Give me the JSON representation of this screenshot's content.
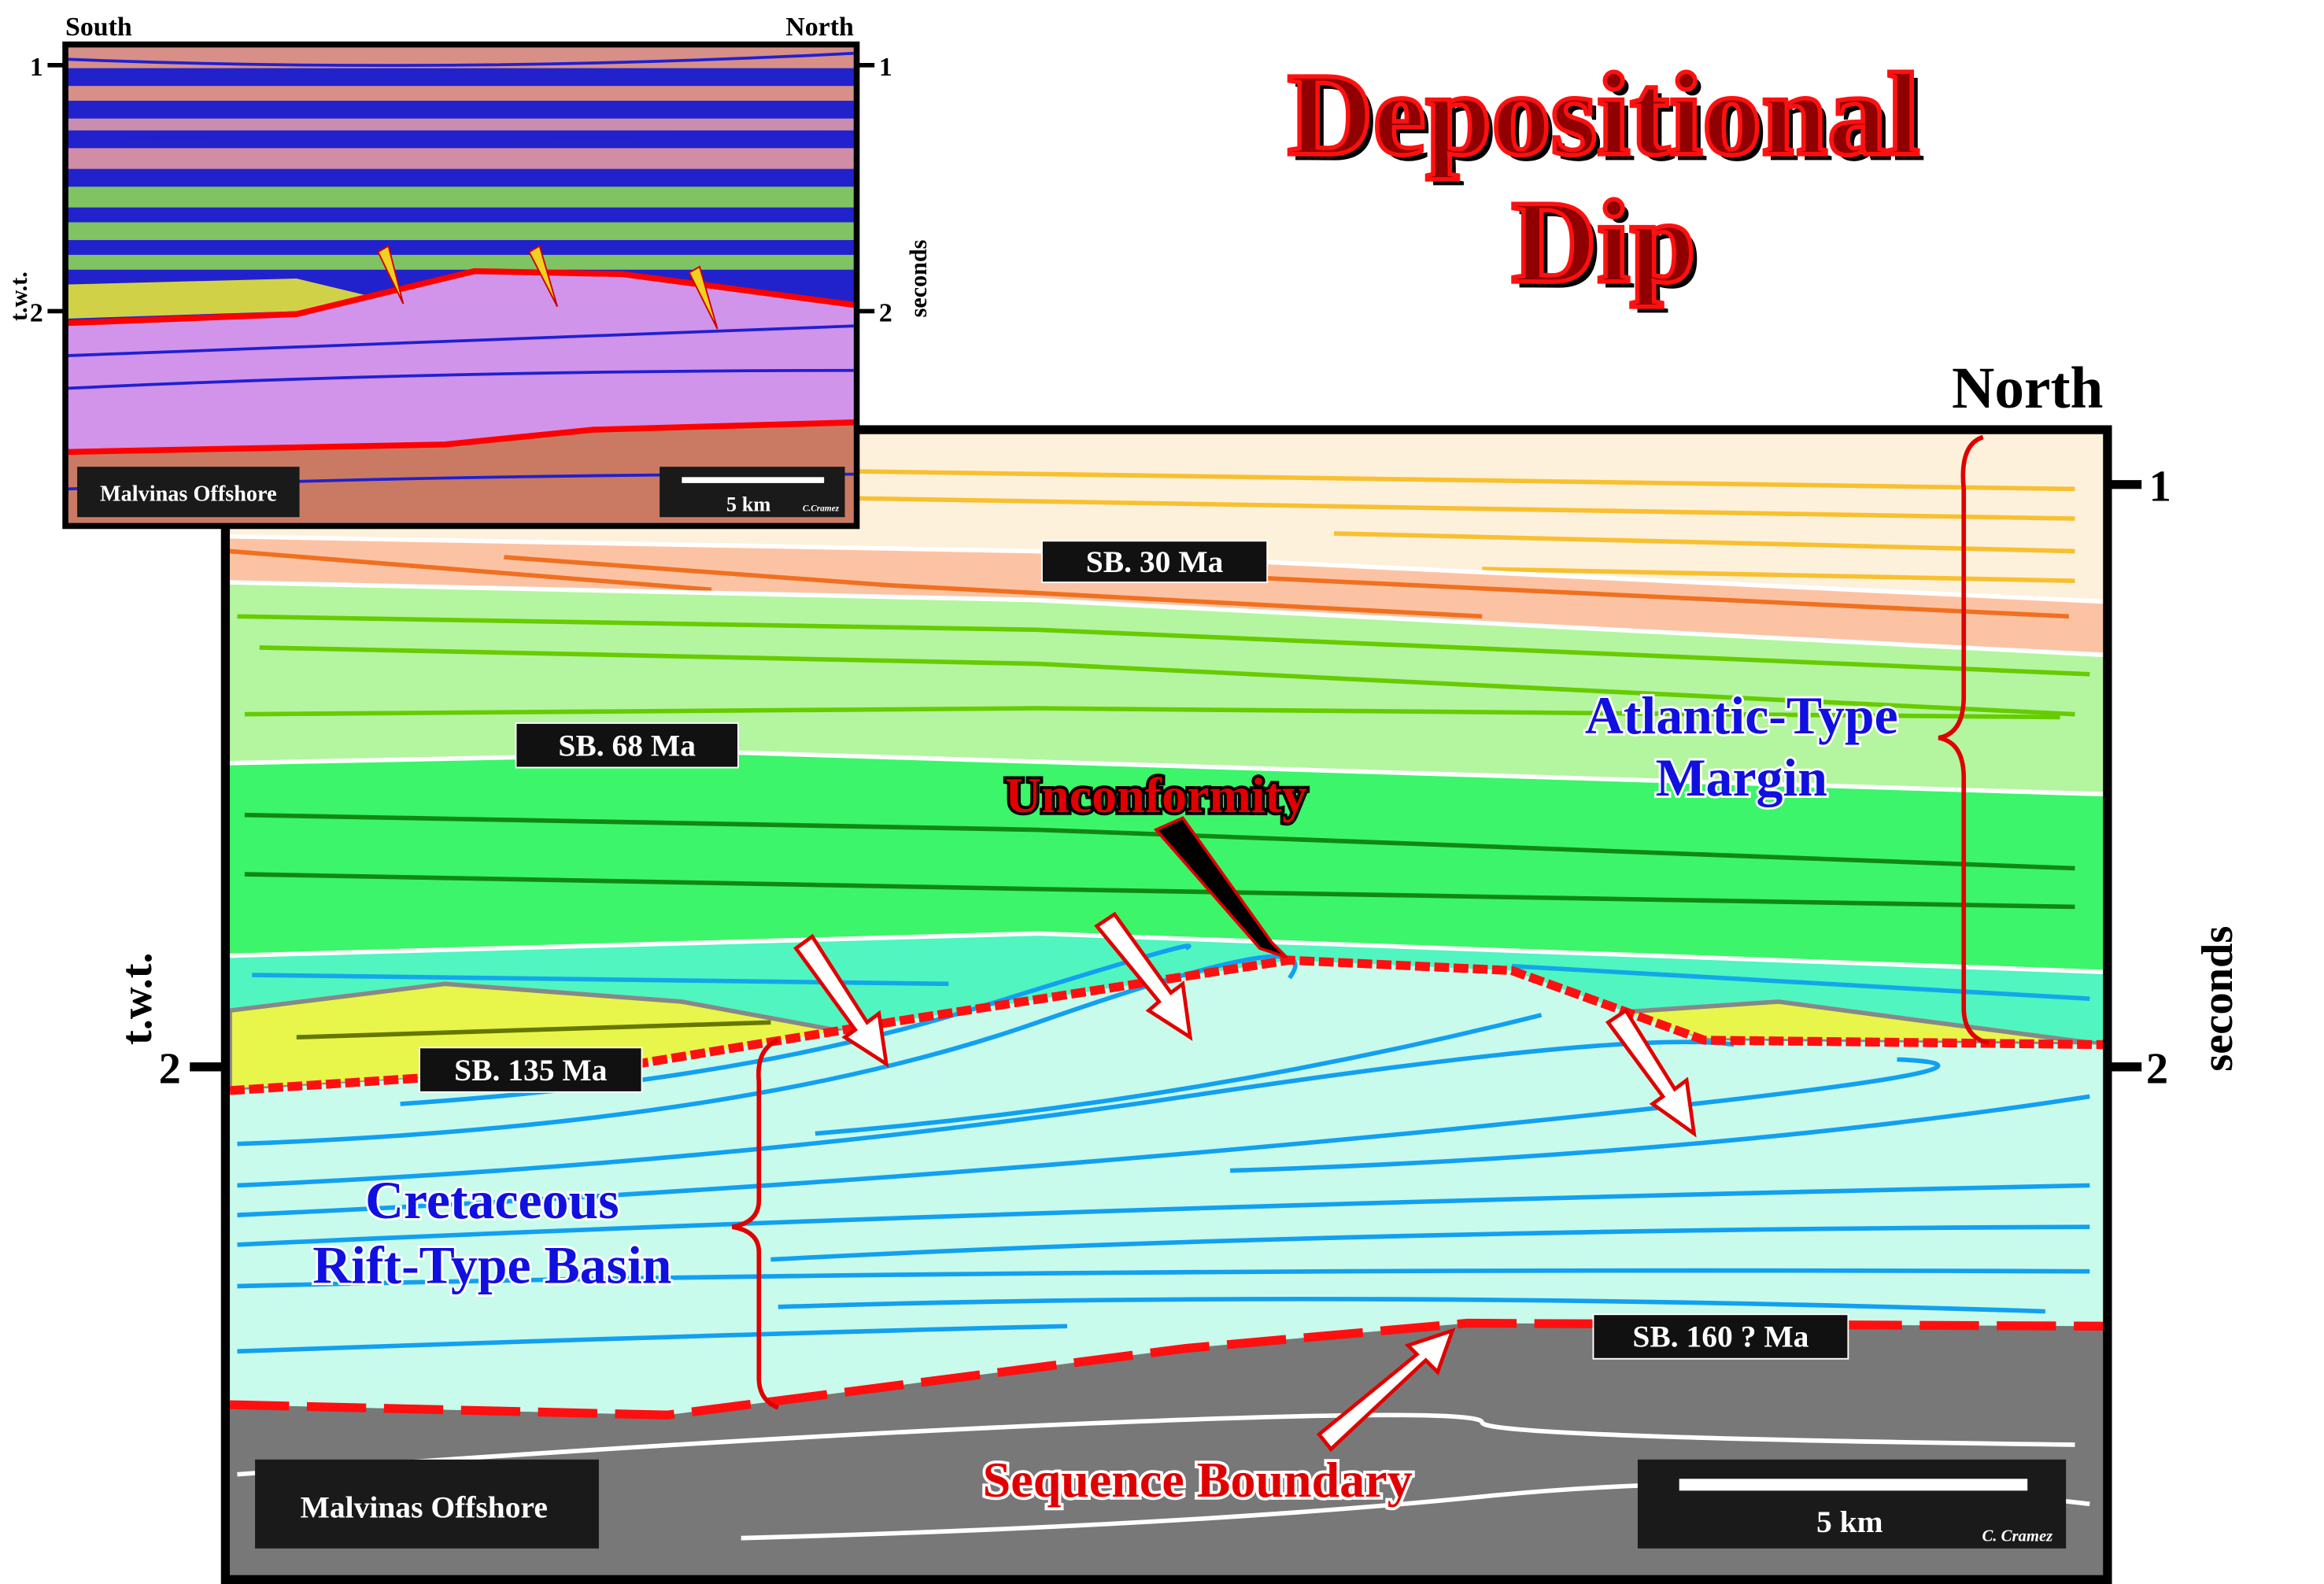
{
  "title": {
    "line1": "Depositional",
    "line2": "Dip"
  },
  "inset": {
    "south": "South",
    "north": "North",
    "twt": "t.w.t.",
    "seconds": "seconds",
    "tick1": "1",
    "tick2": "2",
    "location": "Malvinas Offshore",
    "scale": "5 km",
    "credit": "C.Cramez"
  },
  "section": {
    "north": "North",
    "twt": "t.w.t.",
    "seconds": "seconds",
    "tick1": "1",
    "tick2": "2",
    "sb30": "SB. 30 Ma",
    "sb68": "SB. 68 Ma",
    "sb135": "SB. 135 Ma",
    "sb160": "SB. 160 ? Ma",
    "unconformity": "Unconformity",
    "atlantic": [
      "Atlantic-Type",
      "Margin"
    ],
    "cretaceous": [
      "Cretaceous",
      "Rift-Type Basin"
    ],
    "sequence_boundary": "Sequence Boundary",
    "location": "Malvinas Offshore",
    "scale": "5 km",
    "credit": "C. Cramez"
  }
}
